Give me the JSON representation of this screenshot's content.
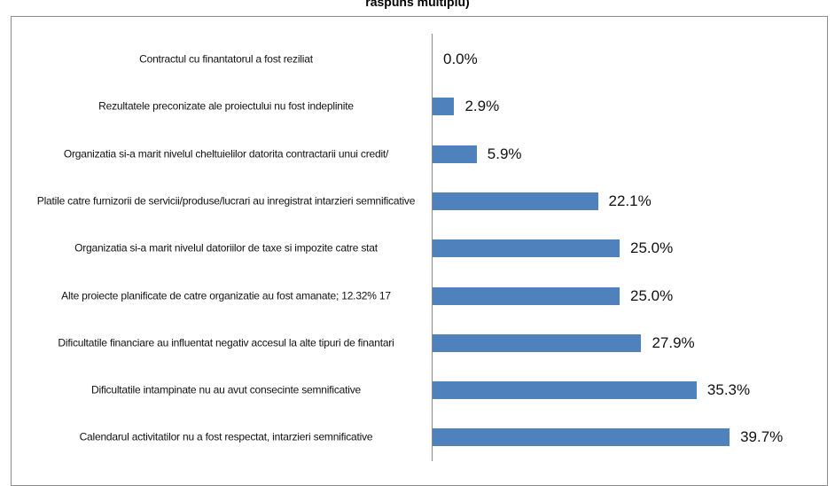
{
  "chart_data": {
    "type": "barh",
    "title": "raspuns multiplu)",
    "categories": [
      "Contractul cu finantatorul a fost reziliat",
      "Rezultatele preconizate ale proiectului nu fost indeplinite",
      "Organizatia si-a marit nivelul cheltuielilor datorita contractarii unui credit/",
      "Platile catre furnizorii de servicii/produse/lucrari au inregistrat intarzieri semnificative",
      "Organizatia si-a marit nivelul datoriilor de taxe si impozite catre stat",
      "Alte proiecte planificate de catre organizatie au fost amanate; 12.32% 17",
      "Dificultatile financiare au influentat negativ accesul la alte tipuri de finantari",
      "Dificultatile intampinate nu au avut consecinte semnificative",
      "Calendarul activitatilor nu a fost respectat, intarzieri semnificative"
    ],
    "values": [
      0,
      2.9,
      5.9,
      22.1,
      25.0,
      25.0,
      27.9,
      35.3,
      39.7
    ],
    "value_labels": [
      "0.0%",
      "2.9%",
      "5.9%",
      "22.1%",
      "25.0%",
      "25.0%",
      "27.9%",
      "35.3%",
      "39.7%"
    ],
    "color": "#4f81bd",
    "xlim": [
      0,
      50
    ]
  }
}
